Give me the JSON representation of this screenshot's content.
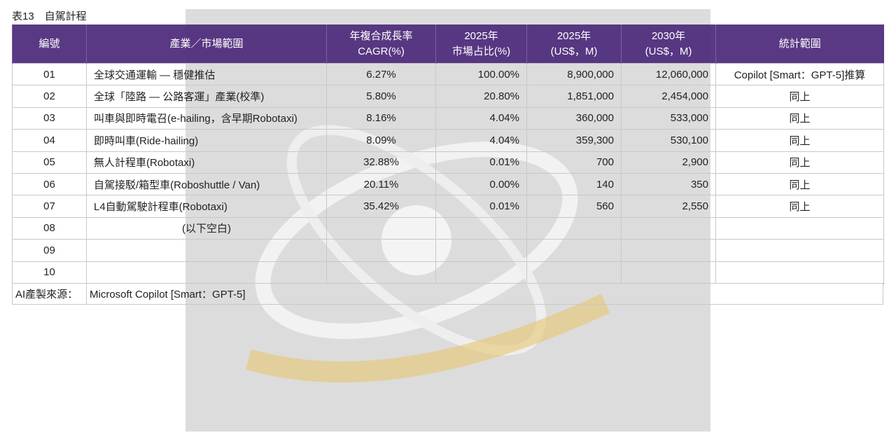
{
  "title": "表13　自駕計程",
  "table": {
    "header": [
      [
        "編號"
      ],
      [
        "產業／市場範圍"
      ],
      [
        "年複合成長率",
        "CAGR(%)"
      ],
      [
        "2025年",
        "市場占比(%)"
      ],
      [
        "2025年",
        "(US$，M)"
      ],
      [
        "2030年",
        "(US$，M)"
      ],
      [
        "統計範圍"
      ]
    ],
    "rows": [
      [
        "01",
        "全球交通運輸 — 穩健推估",
        "6.27%",
        "100.00%",
        "8,900,000",
        "12,060,000",
        "Copilot [Smart：GPT-5]推算"
      ],
      [
        "02",
        "全球「陸路 — 公路客運」產業(校準)",
        "5.80%",
        "20.80%",
        "1,851,000",
        "2,454,000",
        "同上"
      ],
      [
        "03",
        "叫車與即時電召(e-hailing，含早期Robotaxi)",
        "8.16%",
        "4.04%",
        "360,000",
        "533,000",
        "同上"
      ],
      [
        "04",
        "即時叫車(Ride-hailing)",
        "8.09%",
        "4.04%",
        "359,300",
        "530,100",
        "同上"
      ],
      [
        "05",
        "無人計程車(Robotaxi)",
        "32.88%",
        "0.01%",
        "700",
        "2,900",
        "同上"
      ],
      [
        "06",
        "自駕接駁/箱型車(Roboshuttle / Van)",
        "20.11%",
        "0.00%",
        "140",
        "350",
        "同上"
      ],
      [
        "07",
        "L4自動駕駛計程車(Robotaxi)",
        "35.42%",
        "0.01%",
        "560",
        "2,550",
        "同上"
      ],
      [
        "08",
        "(以下空白)"
      ],
      [
        "09"
      ],
      [
        "10"
      ]
    ],
    "footer": {
      "label": "AI產製來源：",
      "value": "Microsoft Copilot [Smart：GPT-5]"
    }
  }
}
